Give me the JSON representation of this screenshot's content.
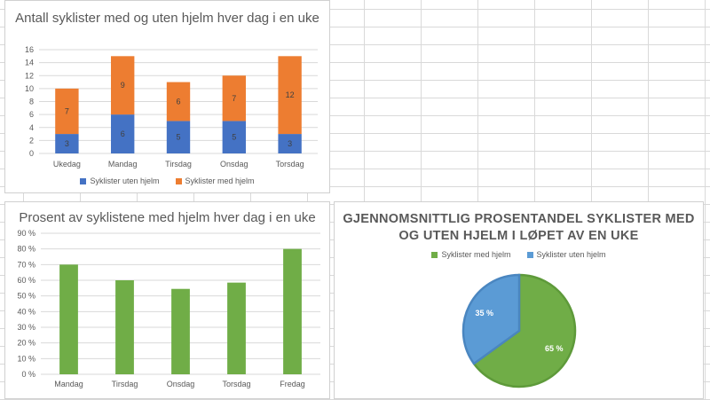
{
  "colors": {
    "blue": "#4472c4",
    "orange": "#ed7d31",
    "green": "#70ad47",
    "pie_blue": "#5b9bd5",
    "grid": "#d9d9d9",
    "axis_text": "#595959"
  },
  "chart_data": [
    {
      "type": "bar",
      "stacked": true,
      "title": "Antall syklister med og uten hjelm hver dag i en uke",
      "categories": [
        "Ukedag",
        "Mandag",
        "Tirsdag",
        "Onsdag",
        "Torsdag"
      ],
      "series": [
        {
          "name": "Syklister uten hjelm",
          "values": [
            3,
            6,
            5,
            5,
            3
          ],
          "color": "#4472c4"
        },
        {
          "name": "Syklister med hjelm",
          "values": [
            7,
            9,
            6,
            7,
            12
          ],
          "color": "#ed7d31"
        }
      ],
      "ylim": [
        0,
        16
      ],
      "yticks": [
        0,
        2,
        4,
        6,
        8,
        10,
        12,
        14,
        16
      ],
      "ytick_labels": [
        "0",
        "2",
        "4",
        "6",
        "8",
        "10",
        "12",
        "14",
        "16"
      ],
      "data_labels": true,
      "grid": true,
      "legend": "bottom"
    },
    {
      "type": "bar",
      "title": "Prosent av syklistene med hjelm hver dag i en uke",
      "categories": [
        "Mandag",
        "Tirsdag",
        "Onsdag",
        "Torsdag",
        "Fredag"
      ],
      "values": [
        70,
        60,
        54.5,
        58.5,
        80
      ],
      "color": "#70ad47",
      "ylim": [
        0,
        90
      ],
      "yticks": [
        0,
        10,
        20,
        30,
        40,
        50,
        60,
        70,
        80,
        90
      ],
      "ytick_labels": [
        "0 %",
        "10 %",
        "20 %",
        "30 %",
        "40 %",
        "50 %",
        "60 %",
        "70 %",
        "80 %",
        "90 %"
      ],
      "grid": true
    },
    {
      "type": "pie",
      "title": "GJENNOMSNITTLIG PROSENTANDEL SYKLISTER MED OG UTEN HJELM I LØPET AV EN UKE",
      "title_lines": [
        "GJENNOMSNITTLIG PROSENTANDEL SYKLISTER MED",
        "OG UTEN HJELM I LØPET AV EN UKE"
      ],
      "labels": [
        "Syklister med hjelm",
        "Syklister uten hjelm"
      ],
      "values": [
        65,
        35
      ],
      "value_labels": [
        "65 %",
        "35 %"
      ],
      "colors": [
        "#70ad47",
        "#5b9bd5"
      ],
      "legend": "top"
    }
  ]
}
